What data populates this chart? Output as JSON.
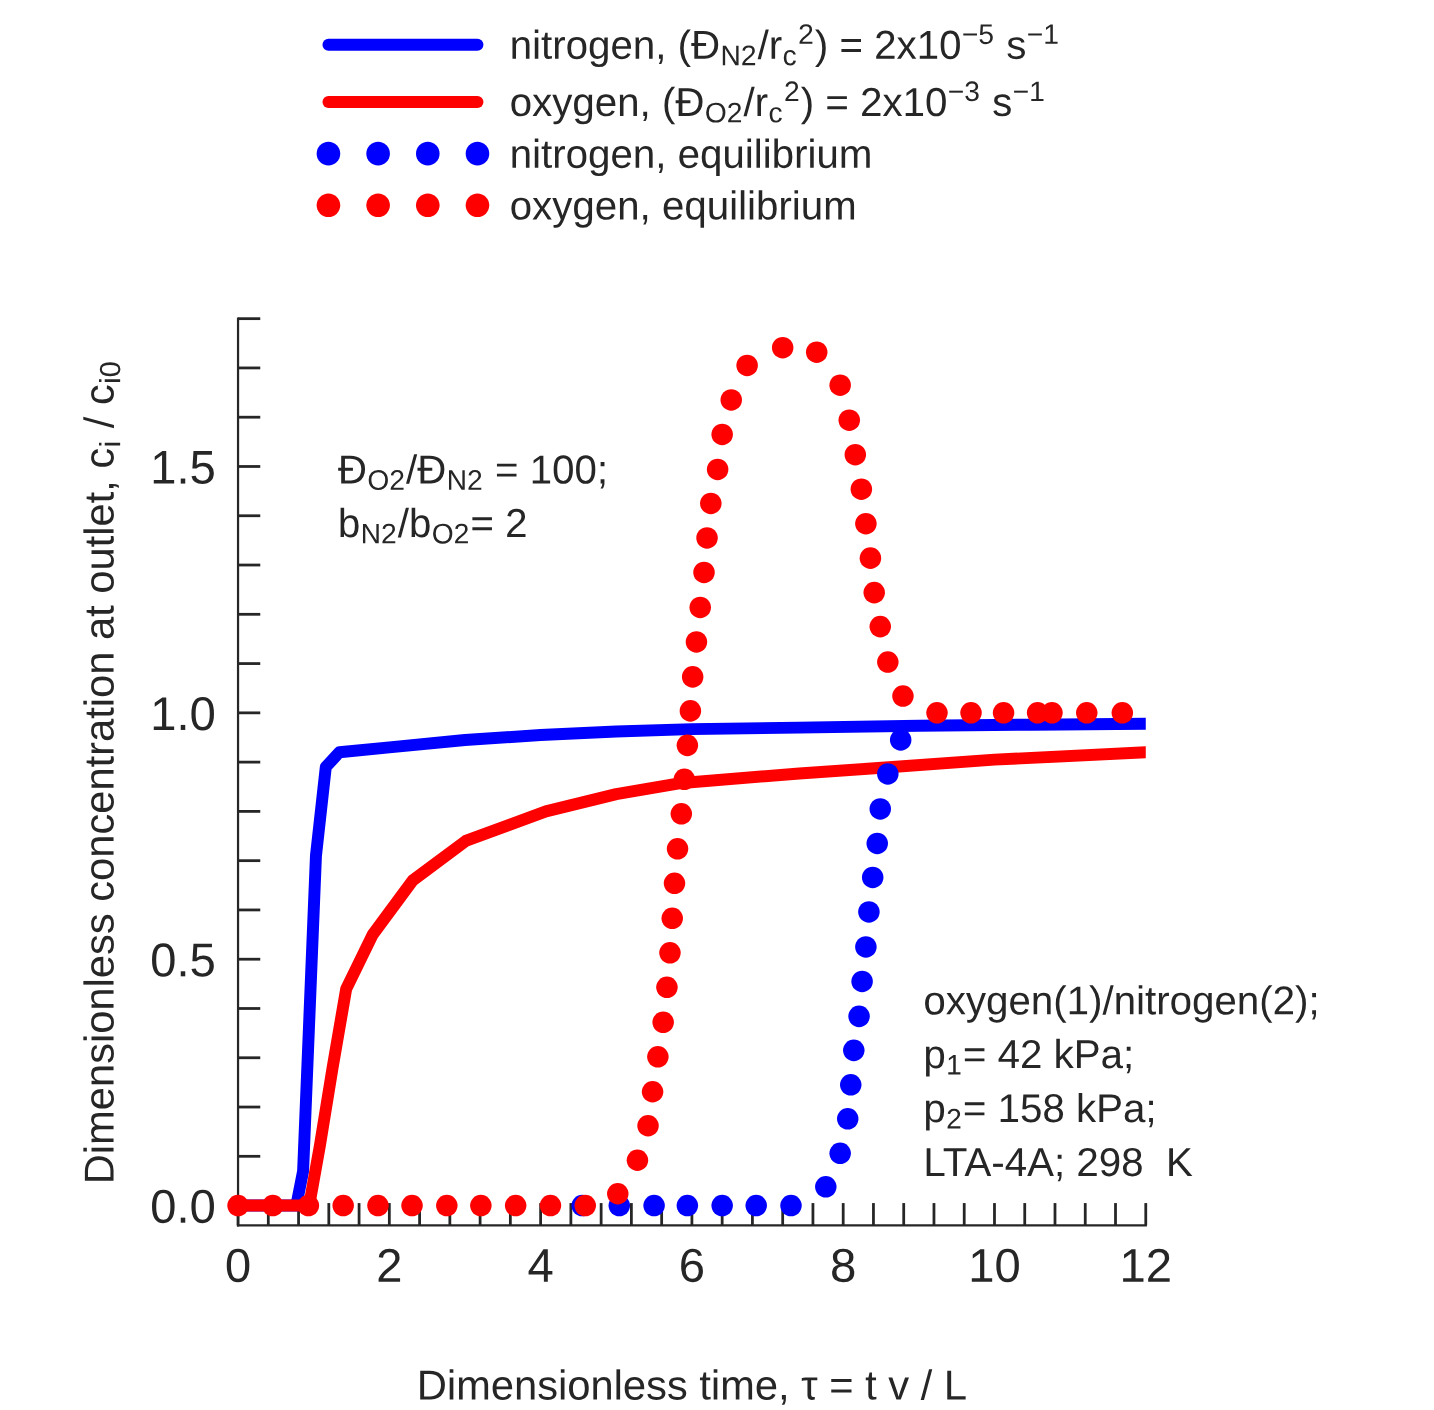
{
  "chart_data": {
    "type": "line",
    "xlabel": "Dimensionless time, τ = t v / L",
    "ylabel": "Dimensionless concentration at outlet, c$_{i}$ / c$_{i0}$",
    "xlim": [
      0,
      12
    ],
    "ylim": [
      -0.04,
      1.8
    ],
    "xticks": [
      0,
      2,
      4,
      6,
      8,
      10,
      12
    ],
    "yticks": [
      {
        "value": 0,
        "label": "0.0"
      },
      {
        "value": 0.5,
        "label": "0.5"
      },
      {
        "value": 1.0,
        "label": "1.0"
      },
      {
        "value": 1.5,
        "label": "1.5"
      }
    ],
    "grid": false,
    "legend": "top",
    "series": [
      {
        "name": "nitrogen, (Đ$_{N2}$/r$_{c}$$^{2}$) = 2x10$^{−5}$ s$^{−1}$",
        "line_style": "solid",
        "marker": "none",
        "color": "#0000ff",
        "x": [
          0,
          0.77,
          0.86,
          1.03,
          1.16,
          1.34,
          2.0,
          3.0,
          4.0,
          5.0,
          6.0,
          7.42,
          9.0,
          10.5,
          12
        ],
        "values": [
          0,
          0,
          0.07,
          0.71,
          0.89,
          0.92,
          0.93,
          0.945,
          0.955,
          0.962,
          0.967,
          0.97,
          0.974,
          0.976,
          0.978
        ]
      },
      {
        "name": "oxygen, (Đ$_{O2}$/r$_{c}$$^{2}$) = 2x10$^{−3}$ s$^{−1}$",
        "line_style": "solid",
        "marker": "none",
        "color": "#ff0000",
        "x": [
          0,
          0.94,
          1.08,
          1.25,
          1.43,
          1.78,
          2.31,
          3.01,
          4.07,
          5.0,
          5.83,
          7.42,
          8.65,
          10.0,
          12
        ],
        "values": [
          0,
          0,
          0.12,
          0.28,
          0.44,
          0.55,
          0.66,
          0.74,
          0.8,
          0.835,
          0.857,
          0.877,
          0.89,
          0.905,
          0.92
        ]
      },
      {
        "name": "nitrogen, equilibrium",
        "type": "scatter",
        "marker": "circle",
        "color": "#0000ff",
        "x": [
          4.55,
          5.04,
          5.5,
          5.94,
          6.4,
          6.85,
          7.31,
          7.77,
          7.96,
          8.06,
          8.1,
          8.14,
          8.21,
          8.25,
          8.3,
          8.34,
          8.39,
          8.45,
          8.49,
          8.59,
          8.76
        ],
        "values": [
          0,
          0,
          0,
          0,
          0,
          0,
          0,
          0.038,
          0.106,
          0.176,
          0.245,
          0.315,
          0.384,
          0.455,
          0.525,
          0.596,
          0.666,
          0.735,
          0.805,
          0.876,
          0.945
        ]
      },
      {
        "name": "oxygen, equilibrium",
        "type": "scatter",
        "marker": "circle",
        "color": "#ff0000",
        "x": [
          0,
          0.46,
          0.93,
          1.39,
          1.85,
          2.3,
          2.76,
          3.21,
          3.67,
          4.13,
          4.59,
          5.02,
          5.28,
          5.42,
          5.48,
          5.55,
          5.62,
          5.67,
          5.71,
          5.74,
          5.77,
          5.81,
          5.86,
          5.9,
          5.94,
          5.98,
          6.01,
          6.06,
          6.11,
          6.16,
          6.2,
          6.25,
          6.34,
          6.4,
          6.52,
          6.73,
          7.2,
          7.65,
          7.96,
          8.08,
          8.16,
          8.24,
          8.3,
          8.36,
          8.41,
          8.49,
          8.59,
          8.79,
          9.24,
          9.69,
          10.12,
          10.57,
          10.76,
          11.22,
          11.69
        ],
        "values": [
          0,
          0,
          0,
          0,
          0,
          0,
          0,
          0,
          0,
          0,
          0,
          0.024,
          0.092,
          0.162,
          0.231,
          0.302,
          0.372,
          0.443,
          0.513,
          0.583,
          0.654,
          0.724,
          0.795,
          0.865,
          0.934,
          1.004,
          1.073,
          1.144,
          1.214,
          1.285,
          1.355,
          1.425,
          1.494,
          1.565,
          1.635,
          1.705,
          1.741,
          1.732,
          1.665,
          1.594,
          1.524,
          1.454,
          1.384,
          1.314,
          1.244,
          1.175,
          1.103,
          1.034,
          1.0,
          1.0,
          1.0,
          1.0,
          1.0,
          1.0,
          1.0
        ]
      }
    ],
    "annotations": [
      "Đ$_{O2}$/Đ$_{N2}$ = 100;\nb$_{N2}$/b$_{O2}$= 2",
      "oxygen(1)/nitrogen(2);\np$_{1}$= 42 kPa;\np$_{2}$= 158 kPa;\nLTA-4A; 298  K"
    ]
  }
}
